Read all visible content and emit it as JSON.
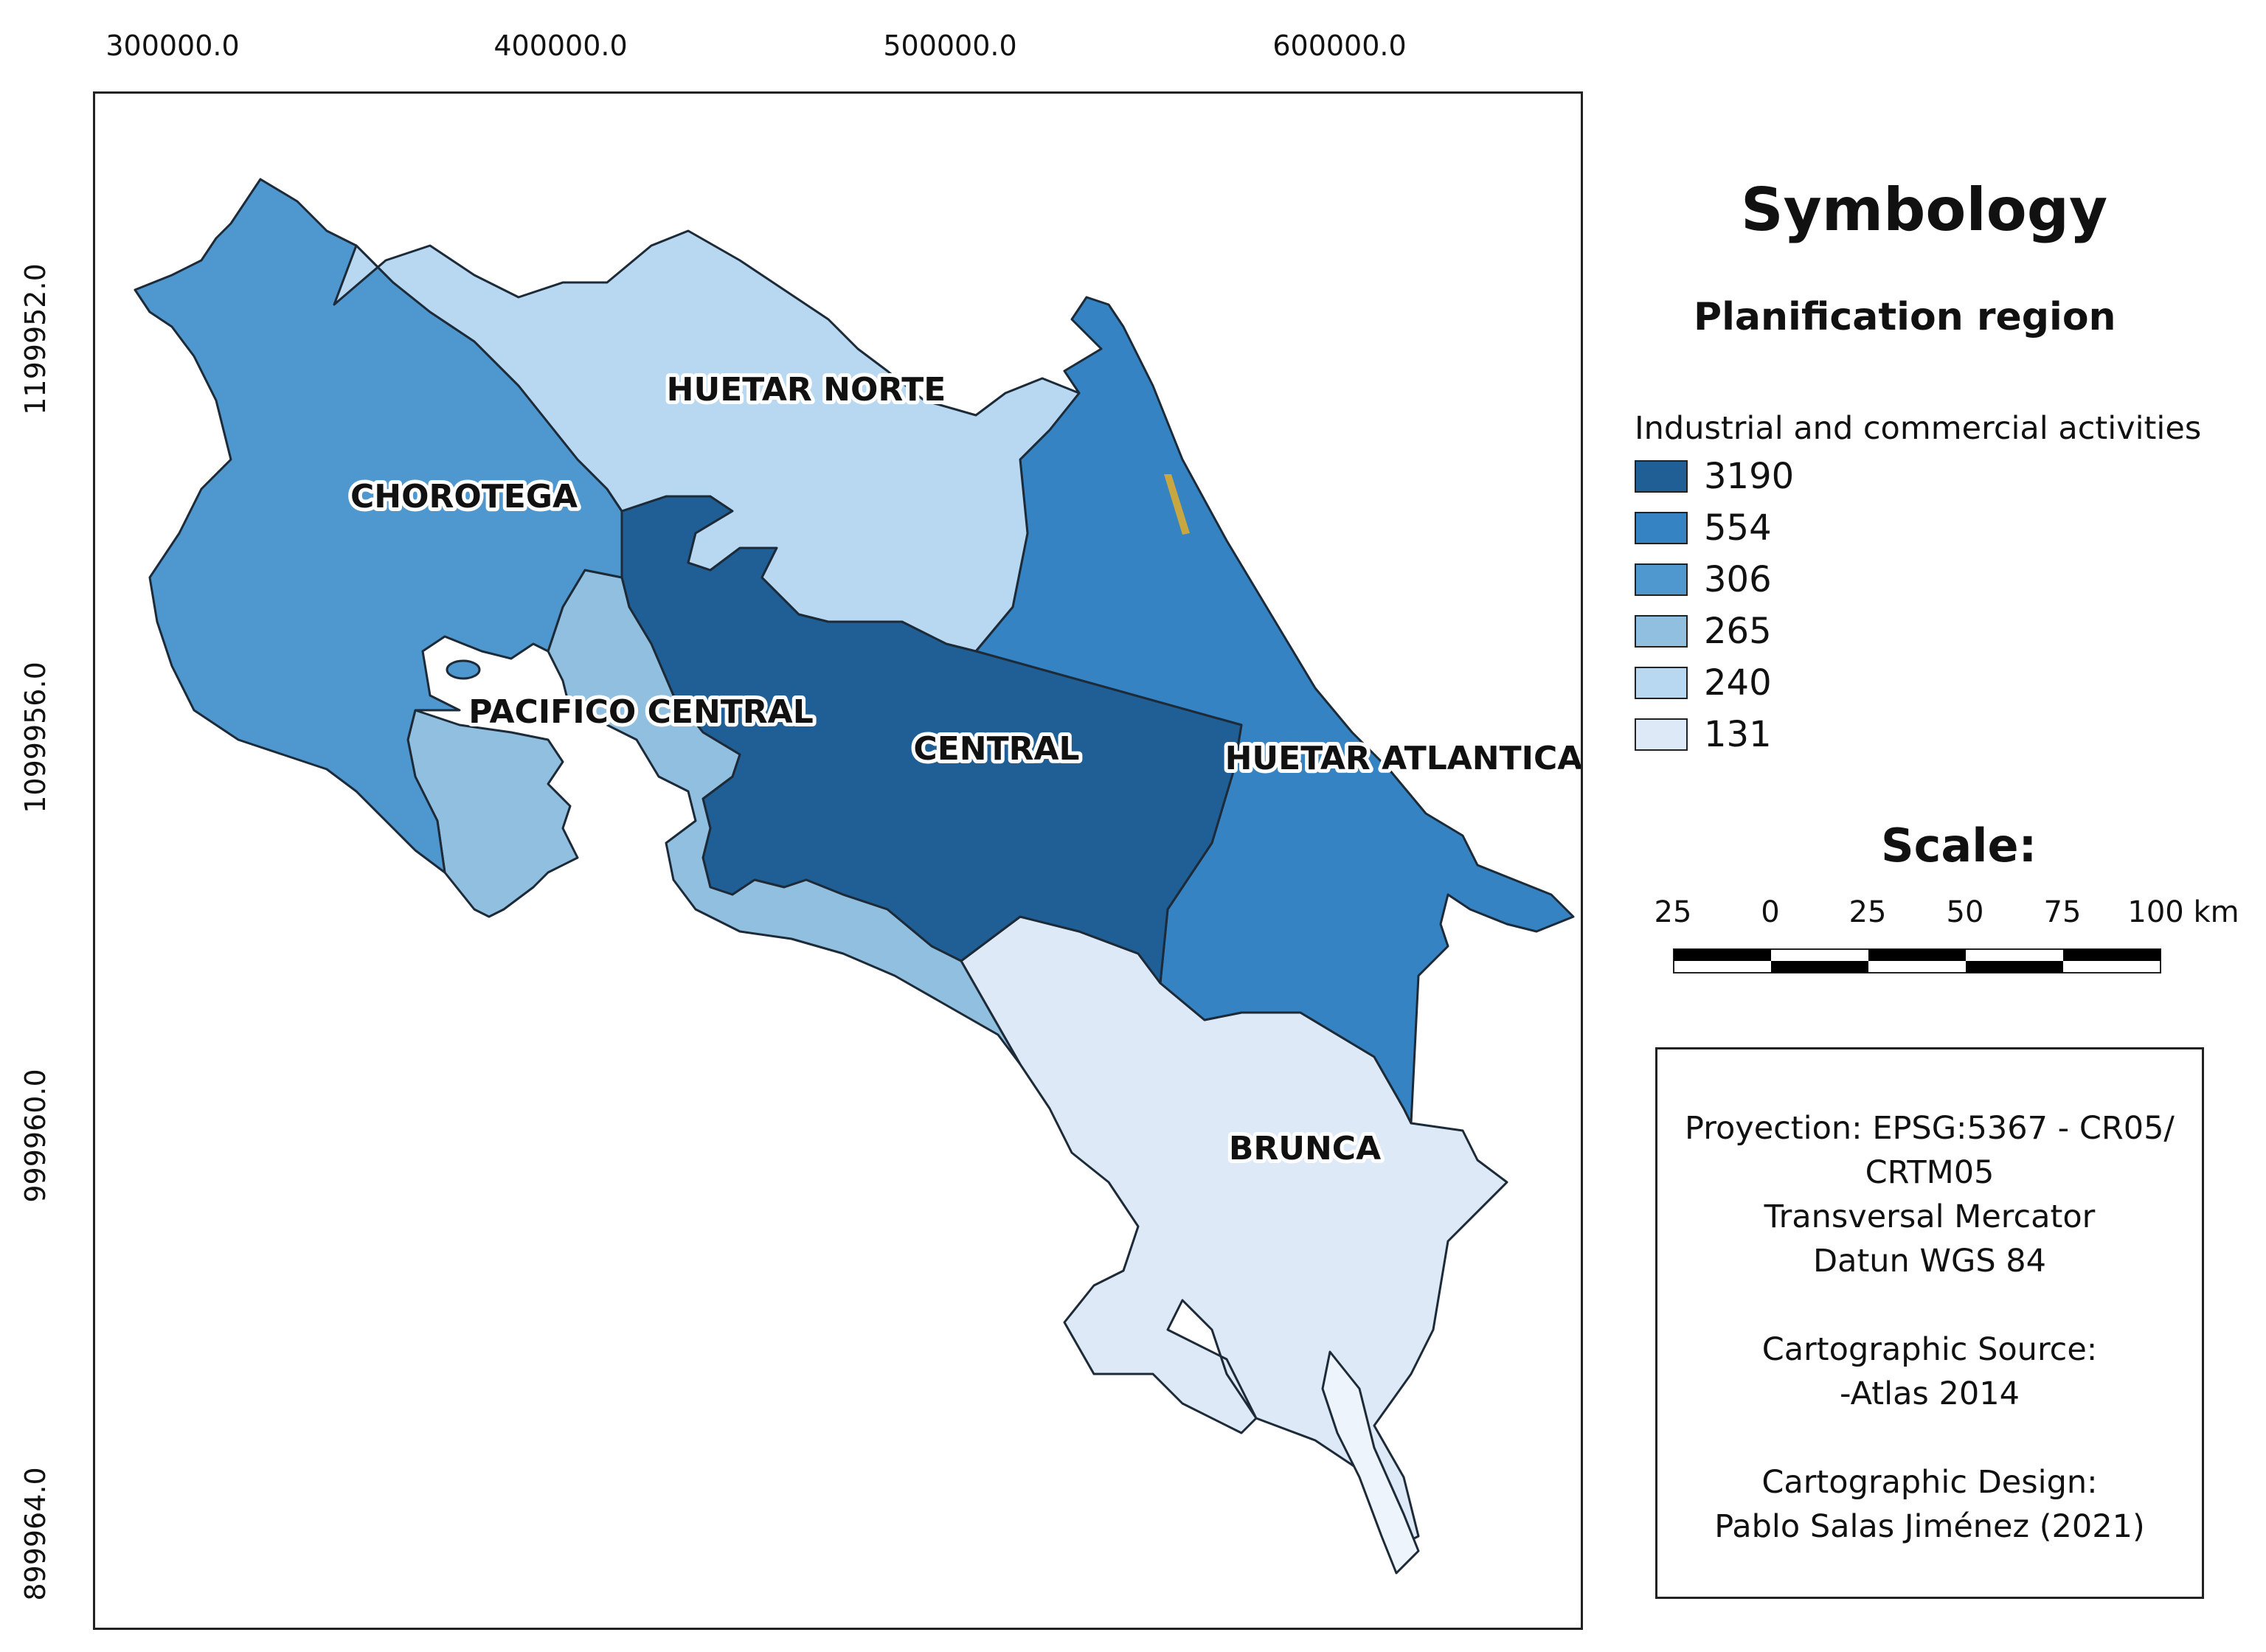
{
  "map": {
    "x_ticks": [
      "300000.0",
      "400000.0",
      "500000.0",
      "600000.0"
    ],
    "y_ticks": [
      "1199952.0",
      "1099956.0",
      "999960.0",
      "899964.0"
    ],
    "regions": [
      {
        "name": "CHOROTEGA",
        "value": 306,
        "color": "#4f97cf"
      },
      {
        "name": "HUETAR NORTE",
        "value": 240,
        "color": "#b8d7f0"
      },
      {
        "name": "PACIFICO CENTRAL",
        "value": 265,
        "color": "#91bfdf"
      },
      {
        "name": "CENTRAL",
        "value": 3190,
        "color": "#1f5f96"
      },
      {
        "name": "HUETAR ATLANTICA",
        "value": 554,
        "color": "#3583c2"
      },
      {
        "name": "BRUNCA",
        "value": 131,
        "color": "#dde9f7"
      }
    ]
  },
  "legend": {
    "title": "Symbology",
    "subtitle": "Planification region",
    "variable": "Industrial and commercial activities",
    "items": [
      {
        "value": "3190",
        "color": "#1f5f96"
      },
      {
        "value": "554",
        "color": "#3583c2"
      },
      {
        "value": "306",
        "color": "#4f97cf"
      },
      {
        "value": "265",
        "color": "#91bfdf"
      },
      {
        "value": "240",
        "color": "#b8d7f0"
      },
      {
        "value": "131",
        "color": "#dde9f7"
      }
    ]
  },
  "scale": {
    "title": "Scale:",
    "labels": [
      "25",
      "0",
      "25",
      "50",
      "75",
      "100 km"
    ]
  },
  "info": {
    "lines": [
      "Proyection: EPSG:5367 - CR05/",
      "CRTM05",
      "Transversal Mercator",
      "Datun WGS 84",
      "Cartographic Source:",
      "-Atlas 2014",
      "Cartographic Design:",
      "Pablo Salas Jiménez (2021)"
    ]
  }
}
